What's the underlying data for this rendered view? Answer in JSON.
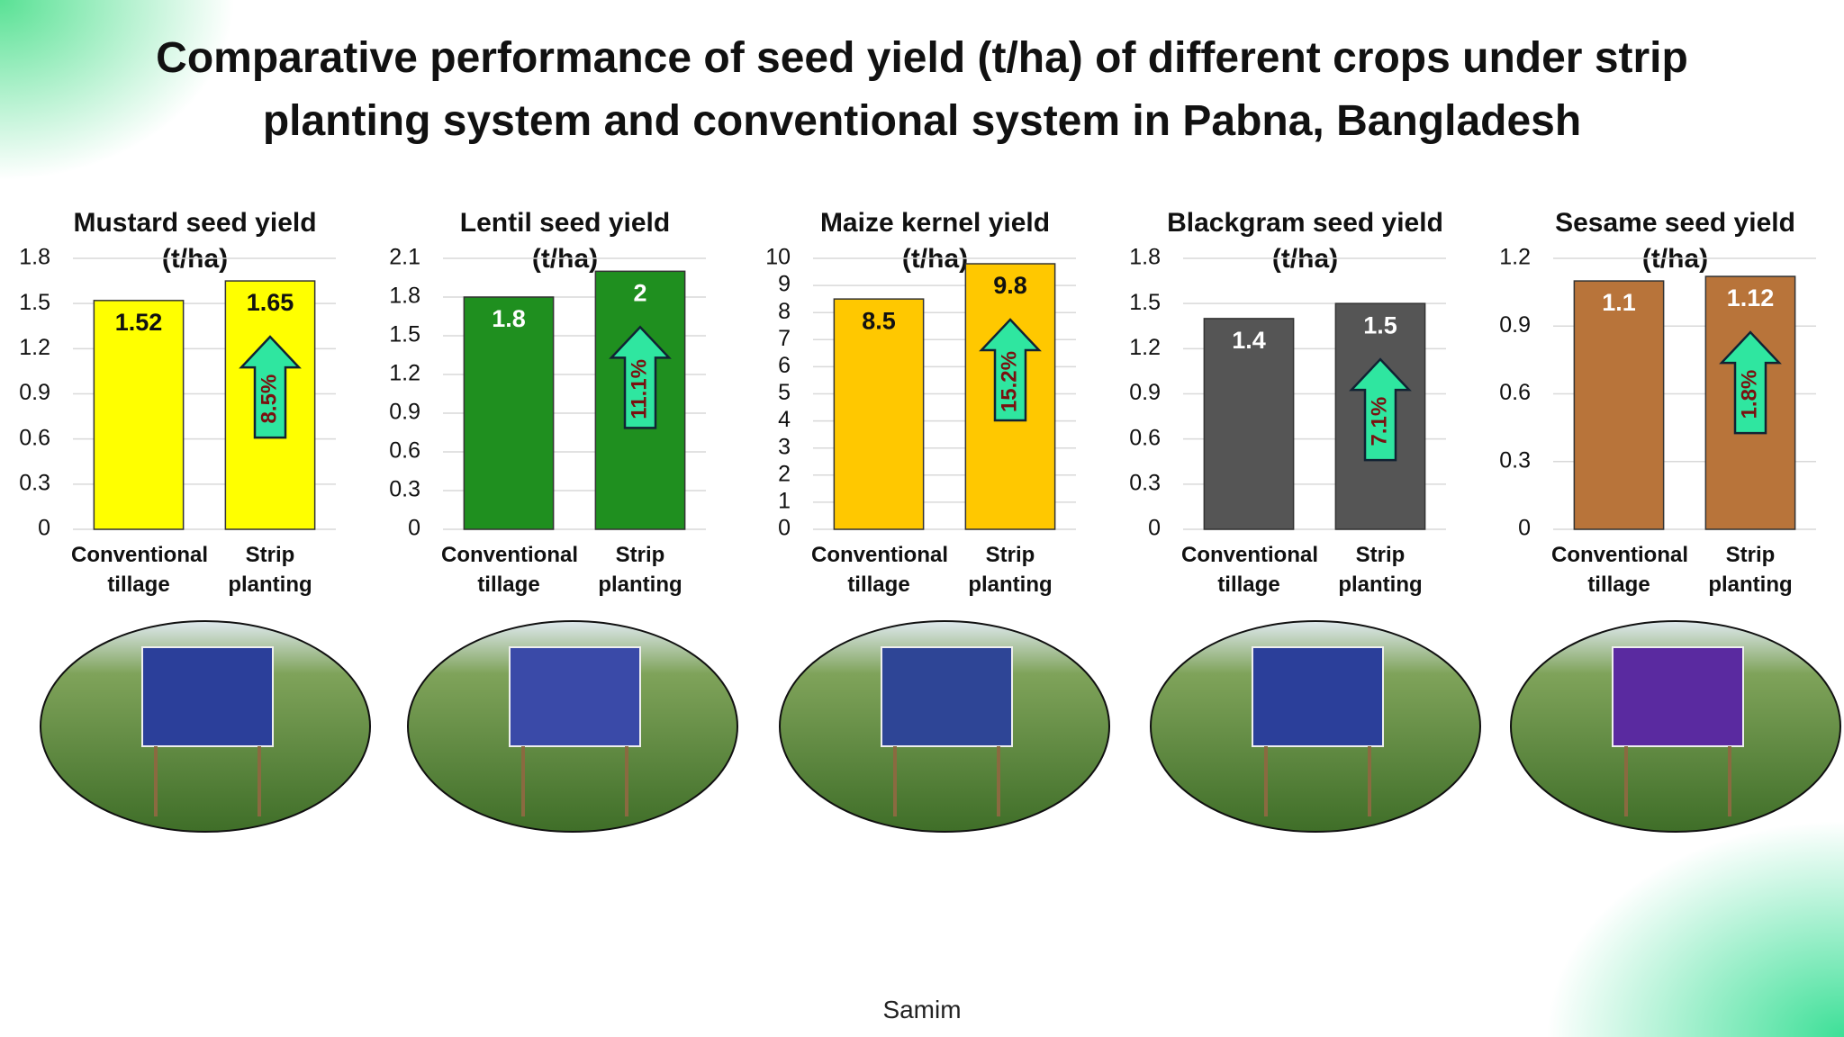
{
  "title": "Comparative performance of seed yield (t/ha) of different crops under strip planting system and conventional system in Pabna, Bangladesh",
  "footer": "Samim",
  "chart_data": [
    {
      "type": "bar",
      "title": "Mustard seed yield (t/ha)",
      "categories": [
        "Conventional tillage",
        "Strip planting"
      ],
      "values": [
        1.52,
        1.65
      ],
      "color": "#ffff00",
      "ylim": [
        0,
        1.8
      ],
      "yticks": [
        0,
        0.3,
        0.6,
        0.9,
        1.2,
        1.5,
        1.8
      ],
      "grid": true,
      "annotation": "8.5%"
    },
    {
      "type": "bar",
      "title": "Lentil seed yield (t/ha)",
      "categories": [
        "Conventional tillage",
        "Strip planting"
      ],
      "values": [
        1.8,
        2
      ],
      "color": "#1f8f1f",
      "ylim": [
        0,
        2.1
      ],
      "yticks": [
        0,
        0.3,
        0.6,
        0.9,
        1.2,
        1.5,
        1.8,
        2.1
      ],
      "grid": true,
      "annotation": "11.1%"
    },
    {
      "type": "bar",
      "title": "Maize kernel yield (t/ha)",
      "categories": [
        "Conventional tillage",
        "Strip planting"
      ],
      "values": [
        8.5,
        9.8
      ],
      "color": "#ffc800",
      "ylim": [
        0,
        10
      ],
      "yticks": [
        0,
        1,
        2,
        3,
        4,
        5,
        6,
        7,
        8,
        9,
        10
      ],
      "grid": true,
      "annotation": "15.2%"
    },
    {
      "type": "bar",
      "title": "Blackgram seed yield (t/ha)",
      "categories": [
        "Conventional tillage",
        "Strip planting"
      ],
      "values": [
        1.4,
        1.5
      ],
      "color": "#555555",
      "ylim": [
        0,
        1.8
      ],
      "yticks": [
        0,
        0.3,
        0.6,
        0.9,
        1.2,
        1.5,
        1.8
      ],
      "grid": true,
      "annotation": "7.1%"
    },
    {
      "type": "bar",
      "title": "Sesame seed yield (t/ha)",
      "categories": [
        "Conventional tillage",
        "Strip planting"
      ],
      "values": [
        1.1,
        1.12
      ],
      "color": "#b8743a",
      "ylim": [
        0,
        1.2
      ],
      "yticks": [
        0,
        0.3,
        0.6,
        0.9,
        1.2
      ],
      "grid": true,
      "annotation": "1.8%"
    }
  ]
}
